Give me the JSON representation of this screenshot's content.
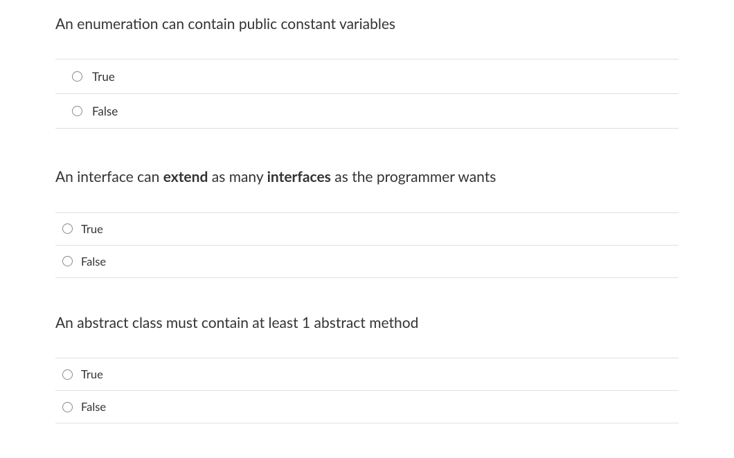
{
  "questions": [
    {
      "prompt_html": "An enumeration can contain public constant variables",
      "options": [
        "True",
        "False"
      ]
    },
    {
      "prompt_html": "An interface can <b>extend</b> as many <b>interfaces</b> as the programmer wants",
      "options": [
        "True",
        "False"
      ]
    },
    {
      "prompt_html": "An abstract class must contain at least 1 abstract method",
      "options": [
        "True",
        "False"
      ]
    }
  ],
  "colors": {
    "background": "#ffffff",
    "text": "#333333",
    "border": "#e0e0e0",
    "radio_border": "#888888"
  },
  "typography": {
    "prompt_fontsize": 21,
    "option_fontsize": 17,
    "font_family": "Segoe UI, Lato, Arial, sans-serif"
  }
}
